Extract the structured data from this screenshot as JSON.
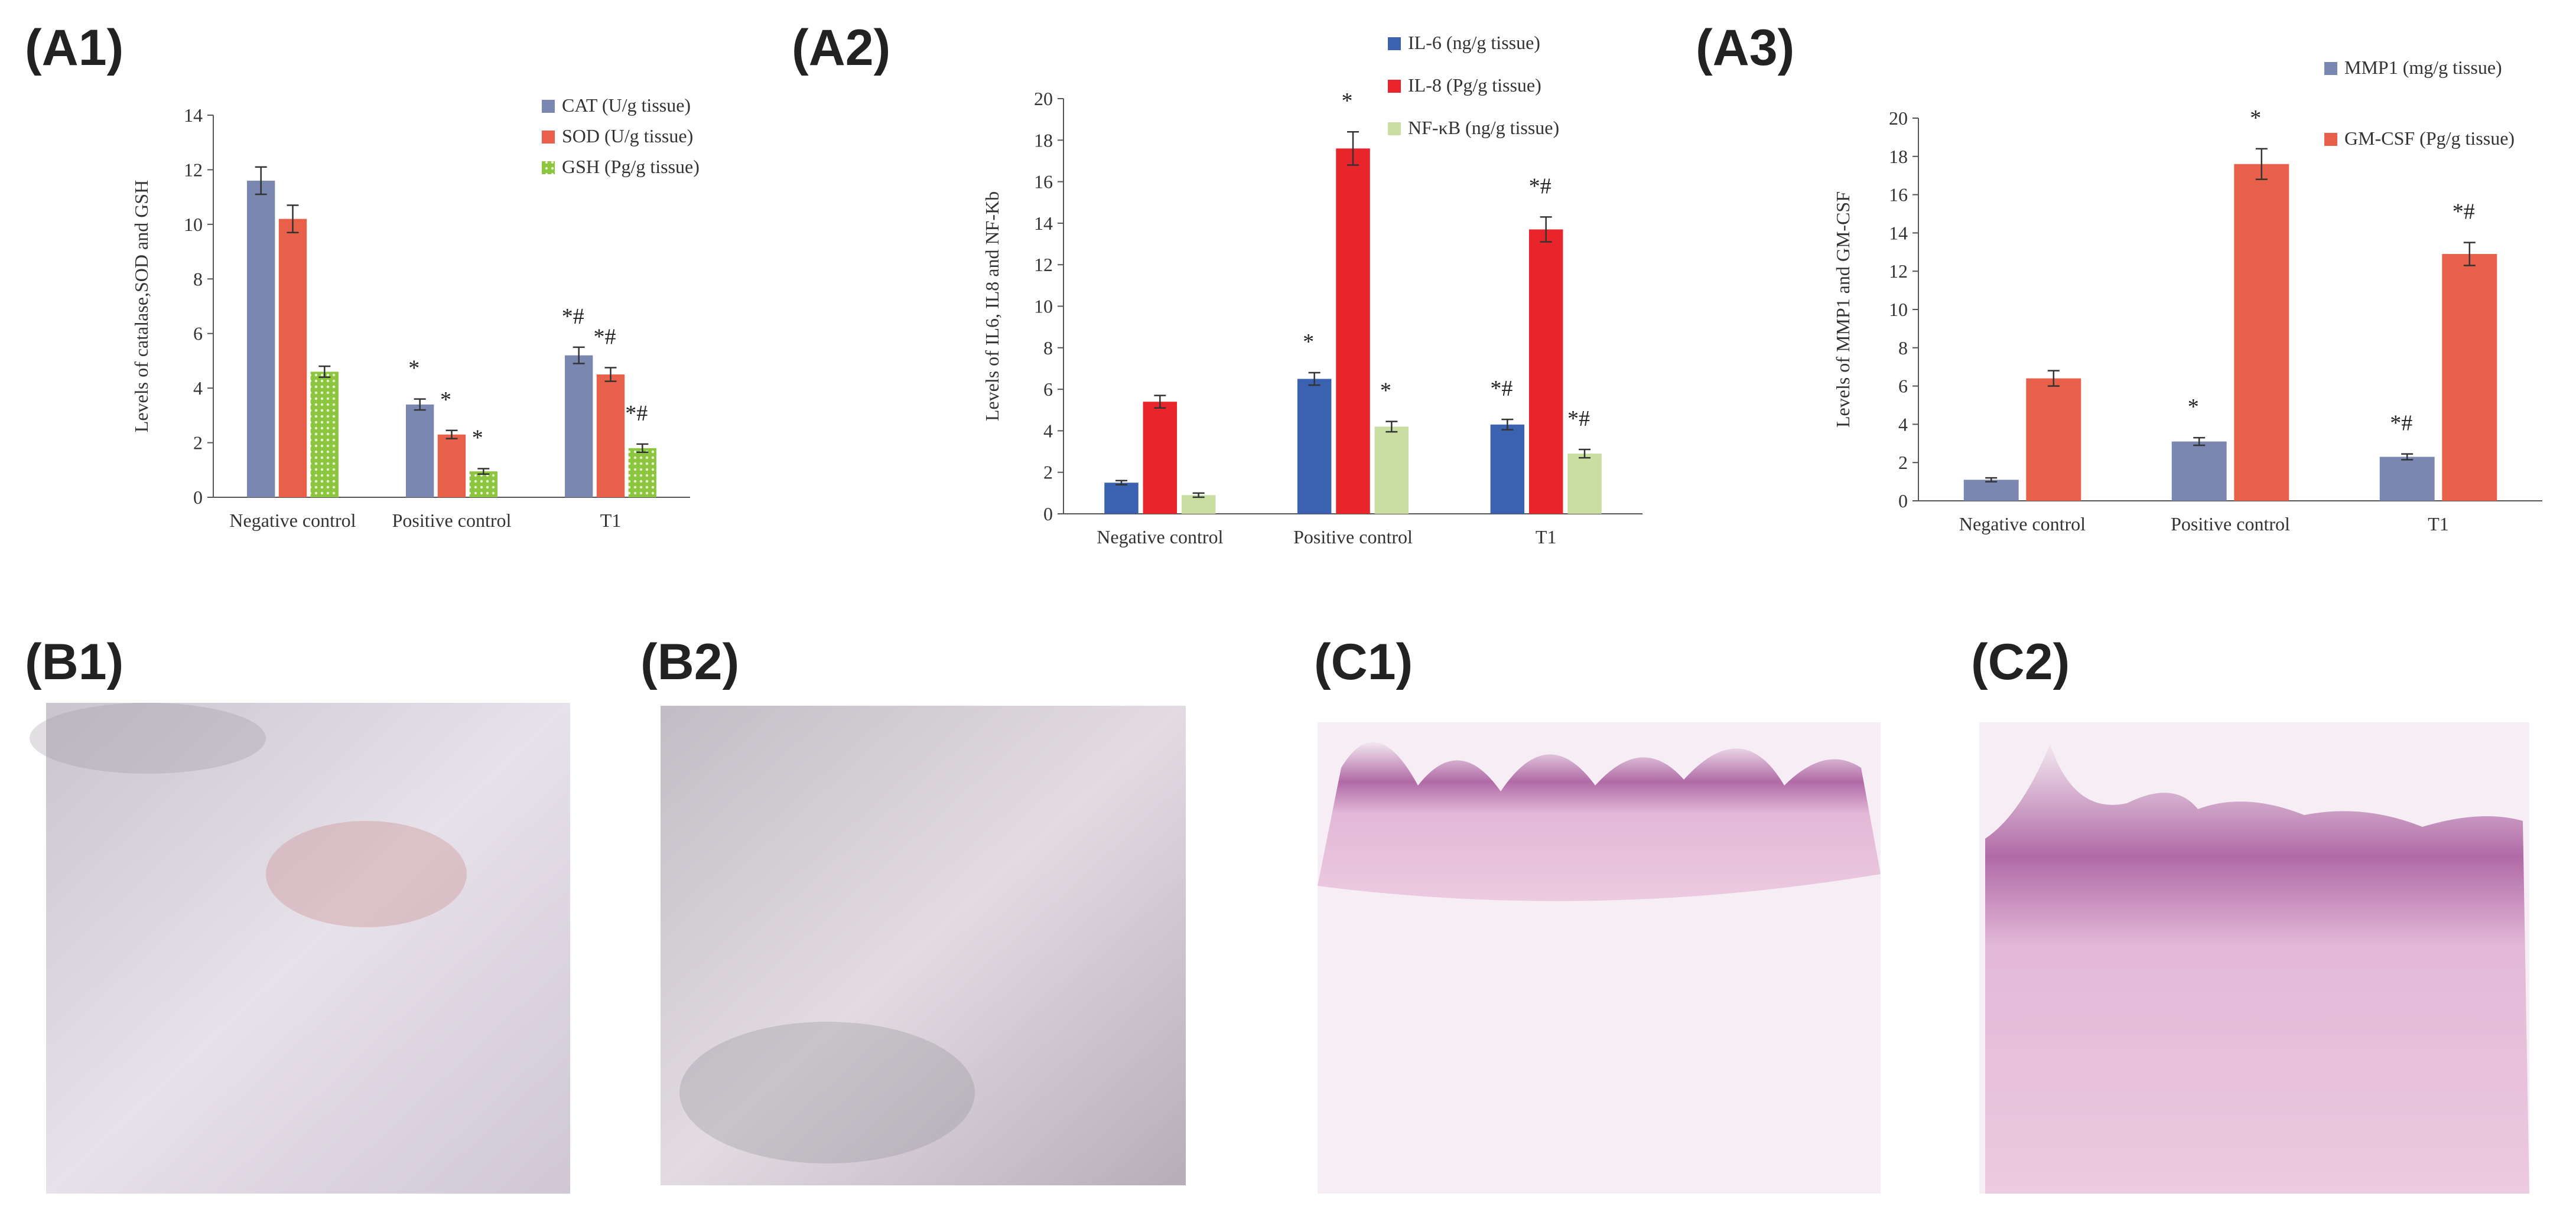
{
  "chart_data": [
    {
      "type": "bar",
      "panel_label": "(A1)",
      "y_label": "Levels of catalase,SOD and GSH",
      "categories": [
        "Negative control",
        "Positive control",
        "T1"
      ],
      "ylim": [
        0,
        14
      ],
      "yticks": [
        0,
        2,
        4,
        6,
        8,
        10,
        12,
        14
      ],
      "series": [
        {
          "name": "CAT (U/g tissue)",
          "color": "#7a87b0",
          "values": [
            11.6,
            3.4,
            5.2
          ],
          "errors": [
            0.5,
            0.2,
            0.3
          ],
          "annotations": [
            null,
            "*",
            "*#"
          ]
        },
        {
          "name": "SOD (U/g tissue)",
          "color": "#e8604a",
          "values": [
            10.2,
            2.3,
            4.5
          ],
          "errors": [
            0.5,
            0.15,
            0.25
          ],
          "annotations": [
            null,
            "*",
            "*#"
          ]
        },
        {
          "name": "GSH (Pg/g tissue)",
          "color": "#8cc63f",
          "hatch": "dots",
          "values": [
            4.6,
            0.95,
            1.8
          ],
          "errors": [
            0.2,
            0.1,
            0.15
          ],
          "annotations": [
            null,
            "*",
            "*#"
          ]
        }
      ]
    },
    {
      "type": "bar",
      "panel_label": "(A2)",
      "y_label": "Levels of IL6, IL8 and NF-Kb",
      "categories": [
        "Negative control",
        "Positive control",
        "T1"
      ],
      "ylim": [
        0,
        20
      ],
      "yticks": [
        0,
        2,
        4,
        6,
        8,
        10,
        12,
        14,
        16,
        18,
        20
      ],
      "series": [
        {
          "name": "IL-6 (ng/g tissue)",
          "color": "#3a62b0",
          "values": [
            1.5,
            6.5,
            4.3
          ],
          "errors": [
            0.1,
            0.3,
            0.25
          ],
          "annotations": [
            null,
            "*",
            "*#"
          ]
        },
        {
          "name": "IL-8 (Pg/g tissue)",
          "color": "#e8252b",
          "values": [
            5.4,
            17.6,
            13.7
          ],
          "errors": [
            0.3,
            0.8,
            0.6
          ],
          "annotations": [
            null,
            "*",
            "*#"
          ]
        },
        {
          "name": "NF-κB (ng/g tissue)",
          "color": "#c9dea0",
          "values": [
            0.9,
            4.2,
            2.9
          ],
          "errors": [
            0.1,
            0.25,
            0.2
          ],
          "annotations": [
            null,
            "*",
            "*#"
          ]
        }
      ]
    },
    {
      "type": "bar",
      "panel_label": "(A3)",
      "y_label": "Levels of MMP1 and GM-CSF",
      "categories": [
        "Negative control",
        "Positive control",
        "T1"
      ],
      "ylim": [
        0,
        20
      ],
      "yticks": [
        0,
        2,
        4,
        6,
        8,
        10,
        12,
        14,
        16,
        18,
        20
      ],
      "series": [
        {
          "name": "MMP1 (mg/g tissue)",
          "color": "#7a87b0",
          "values": [
            1.1,
            3.1,
            2.3
          ],
          "errors": [
            0.1,
            0.2,
            0.15
          ],
          "annotations": [
            null,
            "*",
            "*#"
          ]
        },
        {
          "name": "GM-CSF (Pg/g tissue)",
          "color": "#e8604a",
          "values": [
            6.4,
            17.6,
            12.9
          ],
          "errors": [
            0.4,
            0.8,
            0.6
          ],
          "annotations": [
            null,
            "*",
            "*#"
          ]
        }
      ]
    }
  ],
  "photo_panels": [
    {
      "label": "(B1)"
    },
    {
      "label": "(B2)"
    },
    {
      "label": "(C1)"
    },
    {
      "label": "(C2)"
    }
  ]
}
